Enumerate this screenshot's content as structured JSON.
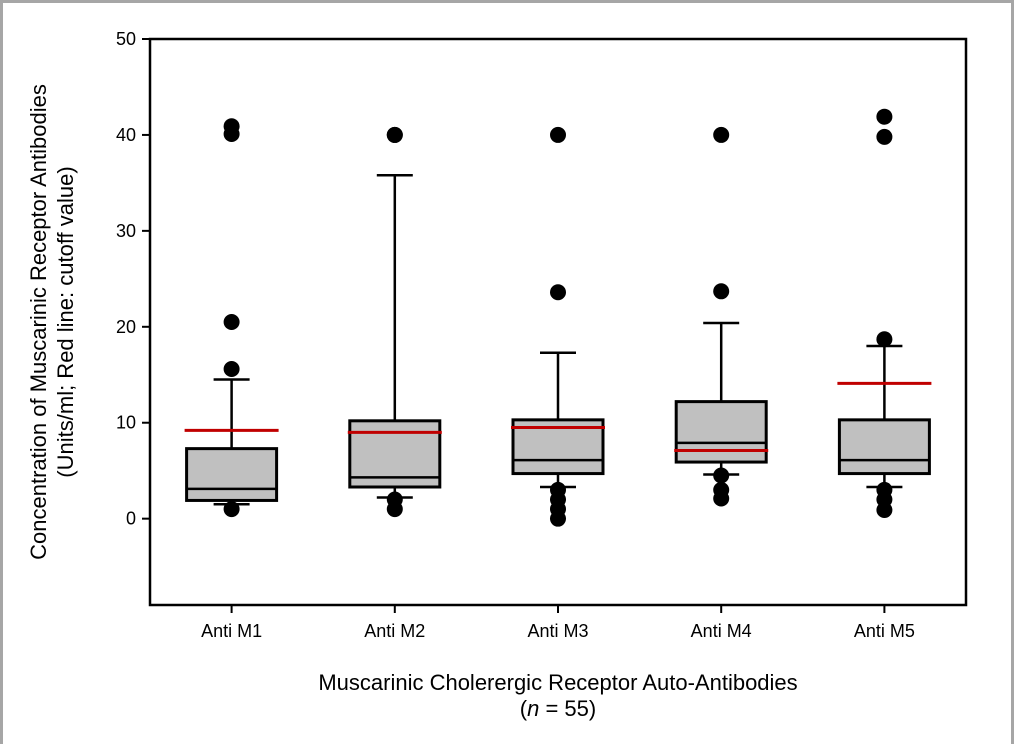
{
  "chart_data": {
    "type": "box",
    "ylabel_line1": "Concentration of Muscarinic Receptor Antibodies",
    "ylabel_line2": "(Units/ml; Red line: cutoff value)",
    "xlabel_line1": "Muscarinic Cholerergic Receptor Auto-Antibodies",
    "xlabel_line2_prefix": "(",
    "xlabel_line2_italic": "n",
    "xlabel_line2_suffix": " = 55)",
    "ylim": [
      -9,
      50
    ],
    "yticks": [
      "50",
      "40",
      "30",
      "20",
      "10",
      "0"
    ],
    "categories": [
      "Anti M1",
      "Anti M2",
      "Anti M3",
      "Anti M4",
      "Anti M5"
    ],
    "box_color": "#c0c0c0",
    "cutoff_color": "#c00000",
    "boxes": [
      {
        "whisker_low": 1.5,
        "q1": 1.9,
        "median": 3.1,
        "q3": 7.3,
        "whisker_high": 14.5,
        "cutoff": 9.2,
        "outliers": [
          1.0,
          15.6,
          20.5,
          40.1,
          40.9
        ]
      },
      {
        "whisker_low": 2.2,
        "q1": 3.3,
        "median": 4.3,
        "q3": 10.2,
        "whisker_high": 35.8,
        "cutoff": 9.0,
        "outliers": [
          1.0,
          2.0,
          40.0,
          40.0
        ]
      },
      {
        "whisker_low": 3.3,
        "q1": 4.7,
        "median": 6.1,
        "q3": 10.3,
        "whisker_high": 17.3,
        "cutoff": 9.5,
        "outliers": [
          0.0,
          1.0,
          2.0,
          3.0,
          23.6,
          40.0
        ]
      },
      {
        "whisker_low": 4.6,
        "q1": 5.9,
        "median": 7.9,
        "q3": 12.2,
        "whisker_high": 20.4,
        "cutoff": 7.1,
        "outliers": [
          2.1,
          3.0,
          4.5,
          23.7,
          40.0
        ]
      },
      {
        "whisker_low": 3.3,
        "q1": 4.7,
        "median": 6.1,
        "q3": 10.3,
        "whisker_high": 18.0,
        "cutoff": 14.1,
        "outliers": [
          0.9,
          2.0,
          3.0,
          18.7,
          39.8,
          41.9
        ]
      }
    ]
  }
}
